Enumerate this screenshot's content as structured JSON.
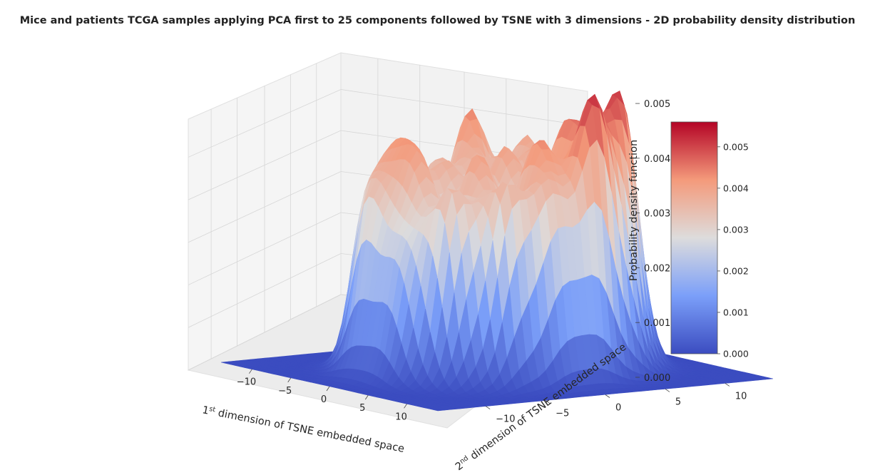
{
  "chart_data": {
    "type": "surface3d",
    "title": "Mice and patients TCGA samples applying PCA first to 25 components followed by TSNE with 3 dimensions - 2D probability density distribution",
    "xlabel_parts": [
      "1",
      "st",
      " dimension of TSNE embedded space"
    ],
    "ylabel_parts": [
      "2",
      "nd",
      " dimension of TSNE embedded space"
    ],
    "zlabel": "Probability density function",
    "x_ticks": [
      "−10",
      "−5",
      "0",
      "5",
      "10"
    ],
    "y_ticks": [
      "−10",
      "−5",
      "0",
      "5",
      "10"
    ],
    "z_ticks": [
      "0.000",
      "0.001",
      "0.002",
      "0.003",
      "0.004",
      "0.005"
    ],
    "xlim": [
      -14,
      14
    ],
    "ylim": [
      -14,
      14
    ],
    "zlim": [
      0,
      0.0056
    ],
    "colormap": "coolwarm",
    "colorbar": {
      "ticks": [
        "0.000",
        "0.001",
        "0.002",
        "0.003",
        "0.004",
        "0.005"
      ],
      "min": 0.0,
      "max": 0.0056
    },
    "peak_density": 0.0055,
    "grid": true
  }
}
